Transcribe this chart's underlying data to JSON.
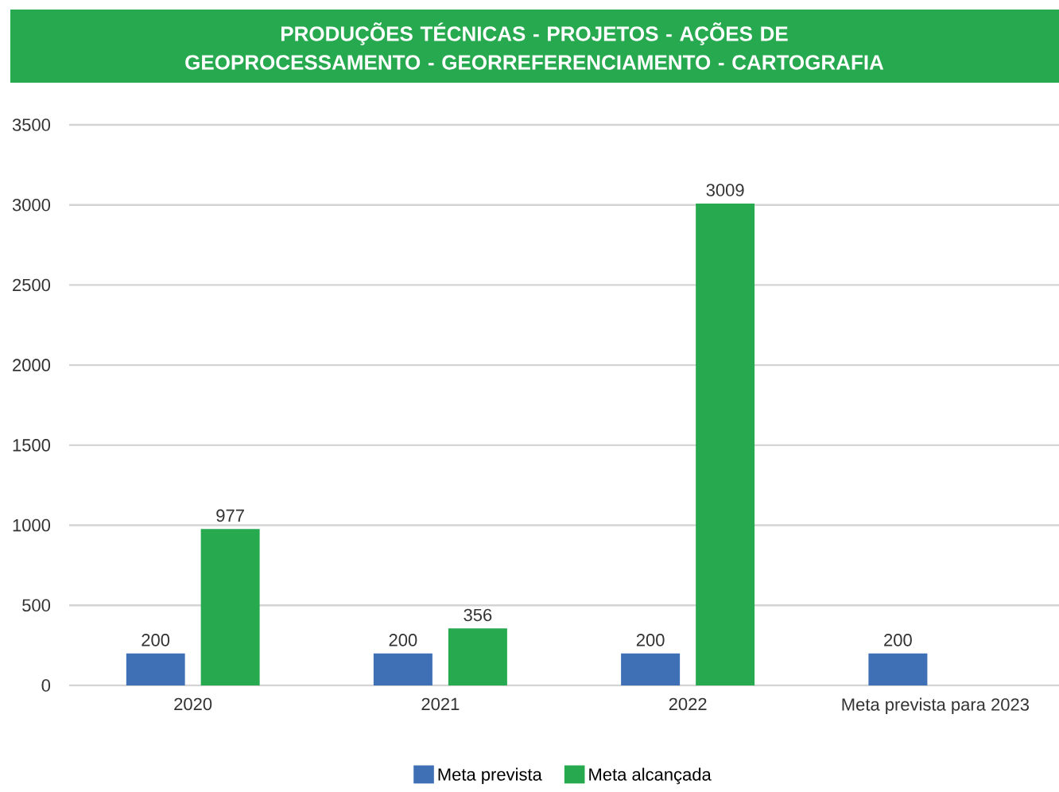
{
  "chart_data": {
    "type": "bar",
    "title": "PRODUÇÕES TÉCNICAS - PROJETOS - AÇÕES DE GEOPROCESSAMENTO - GEORREFERENCIAMENTO - CARTOGRAFIA",
    "categories": [
      "2020",
      "2021",
      "2022",
      "Meta prevista para 2023"
    ],
    "series": [
      {
        "name": "Meta prevista",
        "color": "#3f6fb5",
        "values": [
          200,
          200,
          200,
          200
        ]
      },
      {
        "name": "Meta alcançada",
        "color": "#27aa4f",
        "values": [
          977,
          356,
          3009,
          null
        ]
      }
    ],
    "ylim": [
      0,
      3500
    ],
    "yticks": [
      0,
      500,
      1000,
      1500,
      2000,
      2500,
      3000,
      3500
    ],
    "grid": "y",
    "legend": "bottom",
    "data_labels": true
  }
}
